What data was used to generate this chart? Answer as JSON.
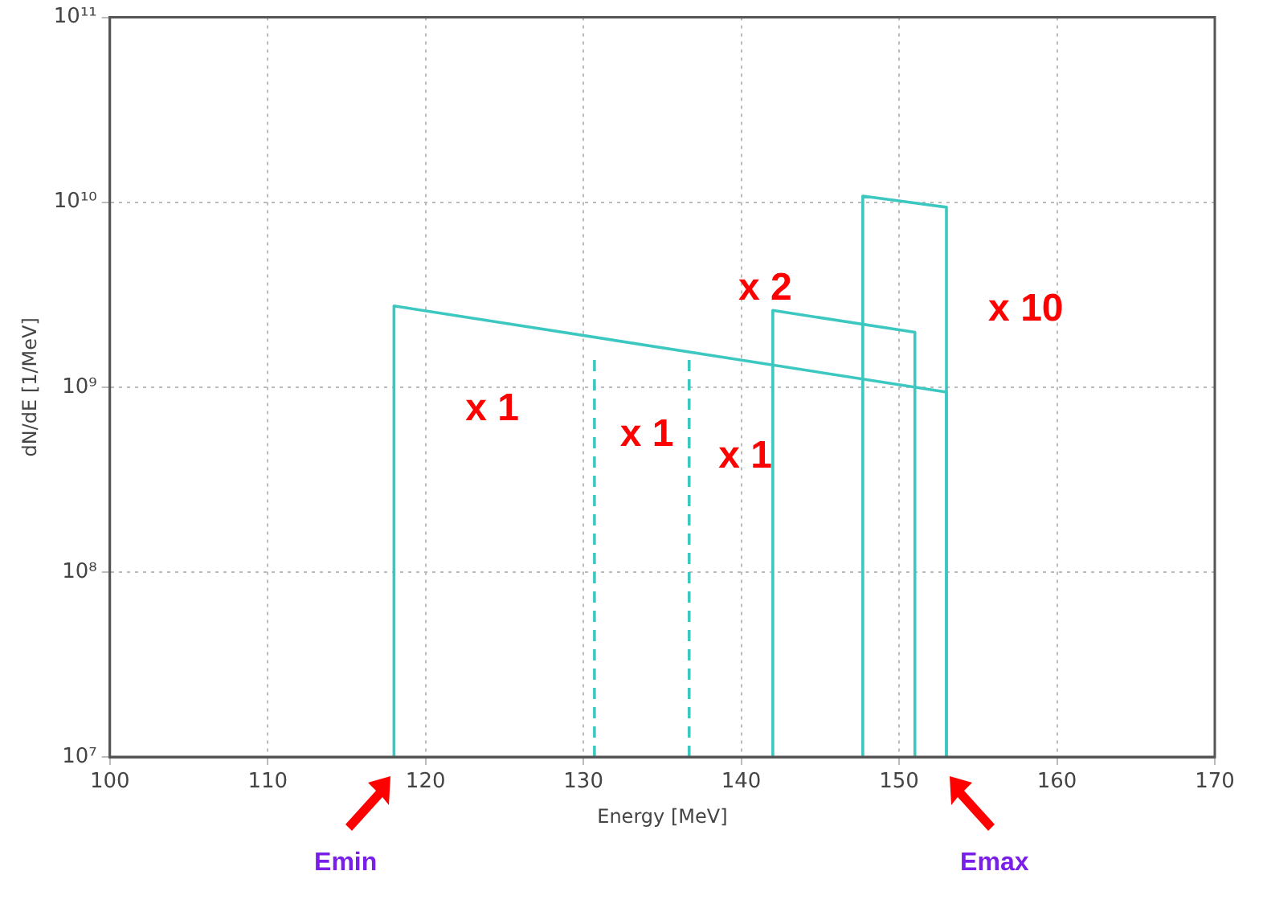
{
  "chart_data": {
    "type": "line",
    "xlabel": "Energy [MeV]",
    "ylabel": "dN/dE [1/MeV]",
    "log": "y",
    "grid": true,
    "legend": false,
    "marker": "none",
    "xlim": [
      100,
      170
    ],
    "xticks": [
      100,
      110,
      120,
      130,
      140,
      150,
      160,
      170
    ],
    "ylim": [
      10000000,
      100000000000
    ],
    "yticks": [
      {
        "value": 10000000,
        "label": "10⁷"
      },
      {
        "value": 100000000,
        "label": "10⁸"
      },
      {
        "value": 1000000000,
        "label": "10⁹"
      },
      {
        "value": 10000000000,
        "label": "10¹⁰"
      },
      {
        "value": 100000000000,
        "label": "10¹¹"
      }
    ],
    "series": [
      {
        "color": "#3cc8c0",
        "line_style": "solid",
        "x": [
          118,
          118,
          153,
          153
        ],
        "values": [
          10000000,
          2750000000,
          940000000,
          10000000
        ]
      },
      {
        "color": "#3cc8c0",
        "line_style": "dashed",
        "x": [
          130.7,
          130.7
        ],
        "values": [
          10000000,
          1500000000
        ]
      },
      {
        "color": "#3cc8c0",
        "line_style": "dashed",
        "x": [
          136.7,
          136.7
        ],
        "values": [
          10000000,
          1450000000
        ]
      },
      {
        "color": "#3cc8c0",
        "line_style": "solid",
        "x": [
          142,
          142,
          151,
          151
        ],
        "values": [
          10000000,
          2600000000,
          1980000000,
          10000000
        ]
      },
      {
        "color": "#3cc8c0",
        "line_style": "solid",
        "x": [
          147.7,
          147.7,
          153,
          153
        ],
        "values": [
          10000000,
          10800000000,
          9400000000,
          10000000
        ]
      }
    ],
    "annotations": [
      "x 1",
      "x 1",
      "x 1",
      "x 2",
      "x 10",
      "Emin",
      "Emax"
    ]
  }
}
